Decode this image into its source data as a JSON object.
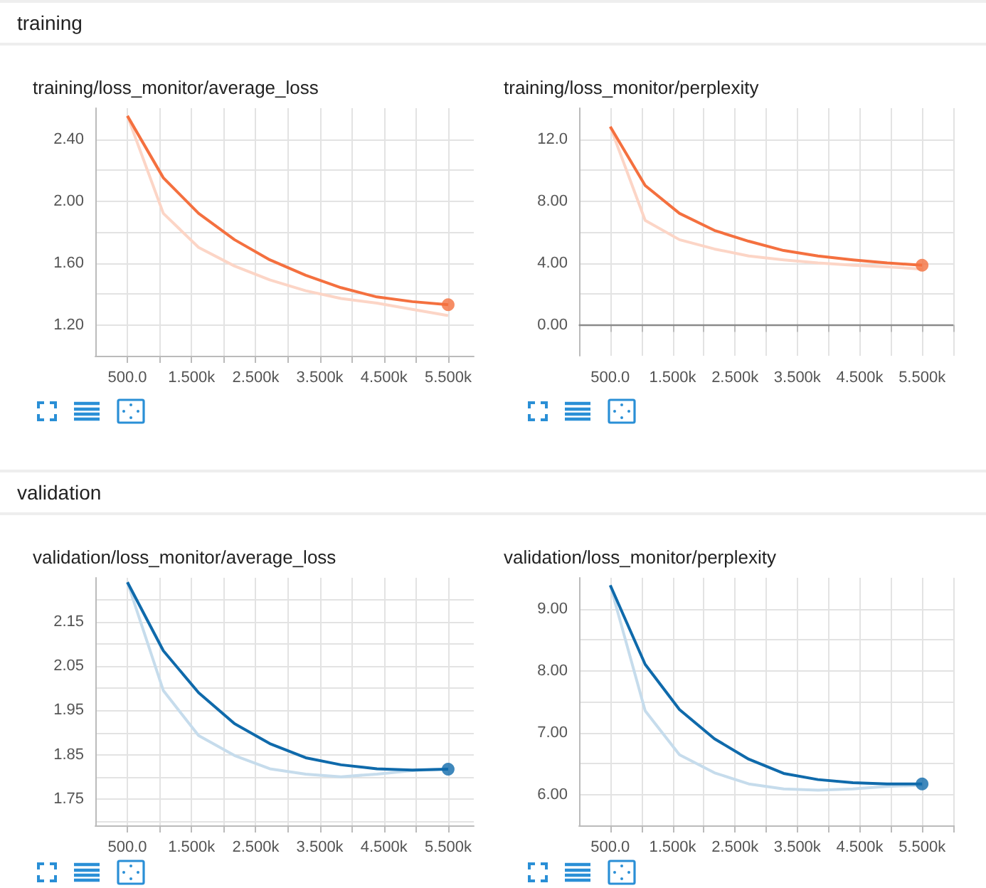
{
  "chart_data": [
    {
      "type": "line",
      "title": "training/loss_monitor/average_loss",
      "annotations": [
        "training"
      ],
      "grid": true,
      "xlim": [
        0,
        5900
      ],
      "ylim": [
        1.0,
        2.6
      ],
      "xticks": [
        {
          "value": 500,
          "label": "500.0"
        },
        {
          "value": 1000,
          "label": null
        },
        {
          "value": 1500,
          "label": "1.500k"
        },
        {
          "value": 2000,
          "label": null
        },
        {
          "value": 2500,
          "label": "2.500k"
        },
        {
          "value": 3000,
          "label": null
        },
        {
          "value": 3500,
          "label": "3.500k"
        },
        {
          "value": 4000,
          "label": null
        },
        {
          "value": 4500,
          "label": "4.500k"
        },
        {
          "value": 5000,
          "label": null
        },
        {
          "value": 5500,
          "label": "5.500k"
        }
      ],
      "yticks": [
        {
          "value": 1.2,
          "label": "1.20"
        },
        {
          "value": 1.4,
          "label": null
        },
        {
          "value": 1.6,
          "label": "1.60"
        },
        {
          "value": 1.8,
          "label": null
        },
        {
          "value": 2.0,
          "label": "2.00"
        },
        {
          "value": 2.2,
          "label": null
        },
        {
          "value": 2.4,
          "label": "2.40"
        }
      ],
      "series": [
        {
          "color": "#fcd5c6",
          "x": [
            500,
            1060,
            1610,
            2170,
            2720,
            3280,
            3830,
            4390,
            4940,
            5500
          ],
          "values": [
            2.55,
            1.92,
            1.7,
            1.58,
            1.49,
            1.42,
            1.37,
            1.34,
            1.3,
            1.26
          ]
        },
        {
          "color": "#f4703f",
          "x": [
            500,
            1060,
            1610,
            2170,
            2720,
            3280,
            3830,
            4390,
            4940,
            5500
          ],
          "values": [
            2.55,
            2.15,
            1.92,
            1.75,
            1.62,
            1.52,
            1.44,
            1.38,
            1.35,
            1.33
          ]
        },
        {
          "type": "scatter",
          "marker": "circle",
          "color": "#f4703f",
          "x": [
            5500
          ],
          "values": [
            1.33
          ]
        }
      ]
    },
    {
      "type": "line",
      "title": "training/loss_monitor/perplexity",
      "grid": true,
      "xlim": [
        0,
        6000
      ],
      "ylim": [
        -2,
        14
      ],
      "xticks": [
        {
          "value": 500,
          "label": "500.0"
        },
        {
          "value": 1000,
          "label": null
        },
        {
          "value": 1500,
          "label": "1.500k"
        },
        {
          "value": 2000,
          "label": null
        },
        {
          "value": 2500,
          "label": "2.500k"
        },
        {
          "value": 3000,
          "label": null
        },
        {
          "value": 3500,
          "label": "3.500k"
        },
        {
          "value": 4000,
          "label": null
        },
        {
          "value": 4500,
          "label": "4.500k"
        },
        {
          "value": 5000,
          "label": null
        },
        {
          "value": 5500,
          "label": "5.500k"
        },
        {
          "value": 6000,
          "label": null
        }
      ],
      "yticks": [
        {
          "value": 0,
          "label": "0.00"
        },
        {
          "value": 2,
          "label": null
        },
        {
          "value": 4,
          "label": "4.00"
        },
        {
          "value": 6,
          "label": null
        },
        {
          "value": 8,
          "label": "8.00"
        },
        {
          "value": 10,
          "label": null
        },
        {
          "value": 12,
          "label": "12.0"
        }
      ],
      "ref_lines": [
        {
          "axis": "y",
          "value": 0,
          "color": "#8a8a8a"
        }
      ],
      "series": [
        {
          "color": "#fcd5c6",
          "x": [
            500,
            1060,
            1610,
            2170,
            2720,
            3280,
            3830,
            4390,
            4940,
            5500
          ],
          "values": [
            12.8,
            6.75,
            5.5,
            4.9,
            4.45,
            4.2,
            4.0,
            3.85,
            3.75,
            3.6
          ]
        },
        {
          "color": "#f4703f",
          "x": [
            500,
            1060,
            1610,
            2170,
            2720,
            3280,
            3830,
            4390,
            4940,
            5500
          ],
          "values": [
            12.8,
            9.0,
            7.2,
            6.1,
            5.4,
            4.8,
            4.45,
            4.2,
            4.0,
            3.85
          ]
        },
        {
          "type": "scatter",
          "marker": "circle",
          "color": "#f4703f",
          "x": [
            5500
          ],
          "values": [
            3.85
          ]
        }
      ]
    },
    {
      "type": "line",
      "title": "validation/loss_monitor/average_loss",
      "annotations": [
        "validation"
      ],
      "grid": true,
      "xlim": [
        0,
        5900
      ],
      "ylim": [
        1.69,
        2.25
      ],
      "xticks": [
        {
          "value": 500,
          "label": "500.0"
        },
        {
          "value": 1000,
          "label": null
        },
        {
          "value": 1500,
          "label": "1.500k"
        },
        {
          "value": 2000,
          "label": null
        },
        {
          "value": 2500,
          "label": "2.500k"
        },
        {
          "value": 3000,
          "label": null
        },
        {
          "value": 3500,
          "label": "3.500k"
        },
        {
          "value": 4000,
          "label": null
        },
        {
          "value": 4500,
          "label": "4.500k"
        },
        {
          "value": 5000,
          "label": null
        },
        {
          "value": 5500,
          "label": "5.500k"
        }
      ],
      "yticks": [
        {
          "value": 1.7,
          "label": null
        },
        {
          "value": 1.75,
          "label": "1.75"
        },
        {
          "value": 1.8,
          "label": null
        },
        {
          "value": 1.85,
          "label": "1.85"
        },
        {
          "value": 1.9,
          "label": null
        },
        {
          "value": 1.95,
          "label": "1.95"
        },
        {
          "value": 2.0,
          "label": null
        },
        {
          "value": 2.05,
          "label": "2.05"
        },
        {
          "value": 2.1,
          "label": null
        },
        {
          "value": 2.15,
          "label": "2.15"
        },
        {
          "value": 2.2,
          "label": null
        }
      ],
      "series": [
        {
          "color": "#c6dcec",
          "x": [
            500,
            1060,
            1610,
            2170,
            2720,
            3280,
            3830,
            4390,
            4940,
            5500
          ],
          "values": [
            2.24,
            1.995,
            1.893,
            1.848,
            1.818,
            1.806,
            1.8,
            1.806,
            1.814,
            1.818
          ]
        },
        {
          "color": "#0f6aab",
          "x": [
            500,
            1060,
            1610,
            2170,
            2720,
            3280,
            3830,
            4390,
            4940,
            5500
          ],
          "values": [
            2.24,
            2.085,
            1.99,
            1.92,
            1.875,
            1.843,
            1.827,
            1.818,
            1.815,
            1.817
          ]
        },
        {
          "type": "scatter",
          "marker": "circle",
          "color": "#0f6aab",
          "x": [
            5500
          ],
          "values": [
            1.817
          ]
        }
      ]
    },
    {
      "type": "line",
      "title": "validation/loss_monitor/perplexity",
      "grid": true,
      "xlim": [
        0,
        6000
      ],
      "ylim": [
        5.5,
        9.5
      ],
      "xticks": [
        {
          "value": 500,
          "label": "500.0"
        },
        {
          "value": 1000,
          "label": null
        },
        {
          "value": 1500,
          "label": "1.500k"
        },
        {
          "value": 2000,
          "label": null
        },
        {
          "value": 2500,
          "label": "2.500k"
        },
        {
          "value": 3000,
          "label": null
        },
        {
          "value": 3500,
          "label": "3.500k"
        },
        {
          "value": 4000,
          "label": null
        },
        {
          "value": 4500,
          "label": "4.500k"
        },
        {
          "value": 5000,
          "label": null
        },
        {
          "value": 5500,
          "label": "5.500k"
        },
        {
          "value": 6000,
          "label": null
        }
      ],
      "yticks": [
        {
          "value": 6,
          "label": "6.00"
        },
        {
          "value": 6.5,
          "label": null
        },
        {
          "value": 7,
          "label": "7.00"
        },
        {
          "value": 7.5,
          "label": null
        },
        {
          "value": 8,
          "label": "8.00"
        },
        {
          "value": 8.5,
          "label": null
        },
        {
          "value": 9,
          "label": "9.00"
        }
      ],
      "series": [
        {
          "color": "#c6dcec",
          "x": [
            500,
            1060,
            1610,
            2170,
            2720,
            3280,
            3830,
            4390,
            4940,
            5500
          ],
          "values": [
            9.38,
            7.35,
            6.64,
            6.35,
            6.17,
            6.09,
            6.07,
            6.09,
            6.13,
            6.15
          ]
        },
        {
          "color": "#0f6aab",
          "x": [
            500,
            1060,
            1610,
            2170,
            2720,
            3280,
            3830,
            4390,
            4940,
            5500
          ],
          "values": [
            9.38,
            8.1,
            7.37,
            6.9,
            6.57,
            6.34,
            6.24,
            6.19,
            6.17,
            6.17
          ]
        },
        {
          "type": "scatter",
          "marker": "circle",
          "color": "#0f6aab",
          "x": [
            5500
          ],
          "values": [
            6.17
          ]
        }
      ]
    }
  ]
}
